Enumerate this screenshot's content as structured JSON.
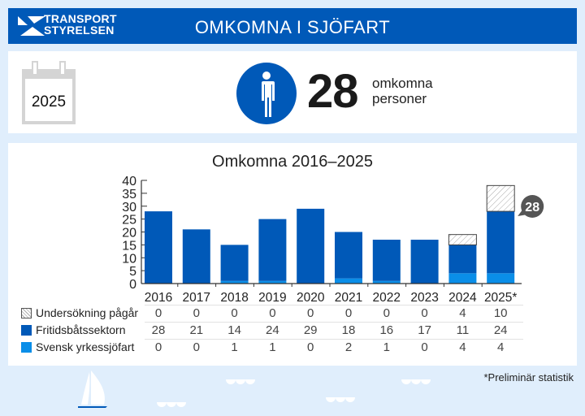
{
  "header": {
    "logo_line1": "TRANSPORT",
    "logo_line2": "STYRELSEN",
    "title": "OMKOMNA I SJÖFART",
    "brand_color": "#0059b8"
  },
  "summary": {
    "calendar_year": "2025",
    "count": "28",
    "label_line1": "omkomna",
    "label_line2": "personer"
  },
  "chart_data": {
    "type": "bar",
    "stacked": true,
    "title": "Omkomna 2016–2025",
    "categories": [
      "2016",
      "2017",
      "2018",
      "2019",
      "2020",
      "2021",
      "2022",
      "2023",
      "2024",
      "2025*"
    ],
    "series": [
      {
        "name": "Svensk yrkessjöfart",
        "color": "#0a8ee8",
        "values": [
          0,
          0,
          1,
          1,
          0,
          2,
          1,
          0,
          4,
          4
        ]
      },
      {
        "name": "Fritidsbåtssektorn",
        "color": "#0059b8",
        "values": [
          28,
          21,
          14,
          24,
          29,
          18,
          16,
          17,
          11,
          24
        ]
      },
      {
        "name": "Undersökning pågår",
        "color": "hatched",
        "values": [
          0,
          0,
          0,
          0,
          0,
          0,
          0,
          0,
          4,
          10
        ]
      }
    ],
    "yticks": [
      "0",
      "5",
      "10",
      "15",
      "20",
      "25",
      "30",
      "35",
      "40"
    ],
    "ylim": [
      0,
      40
    ],
    "xlabel": "",
    "ylabel": "",
    "grid": false,
    "callout": {
      "category": "2025*",
      "value": "28"
    },
    "legend_position": "table-below"
  },
  "table": {
    "rows": [
      {
        "label": "Undersökning pågår",
        "values": [
          "0",
          "0",
          "0",
          "0",
          "0",
          "0",
          "0",
          "0",
          "4",
          "10"
        ]
      },
      {
        "label": "Fritidsbåtssektorn",
        "values": [
          "28",
          "21",
          "14",
          "24",
          "29",
          "18",
          "16",
          "17",
          "11",
          "24"
        ]
      },
      {
        "label": "Svensk yrkessjöfart",
        "values": [
          "0",
          "0",
          "1",
          "1",
          "0",
          "2",
          "1",
          "0",
          "4",
          "4"
        ]
      }
    ]
  },
  "footnote": "*Preliminär statistik"
}
